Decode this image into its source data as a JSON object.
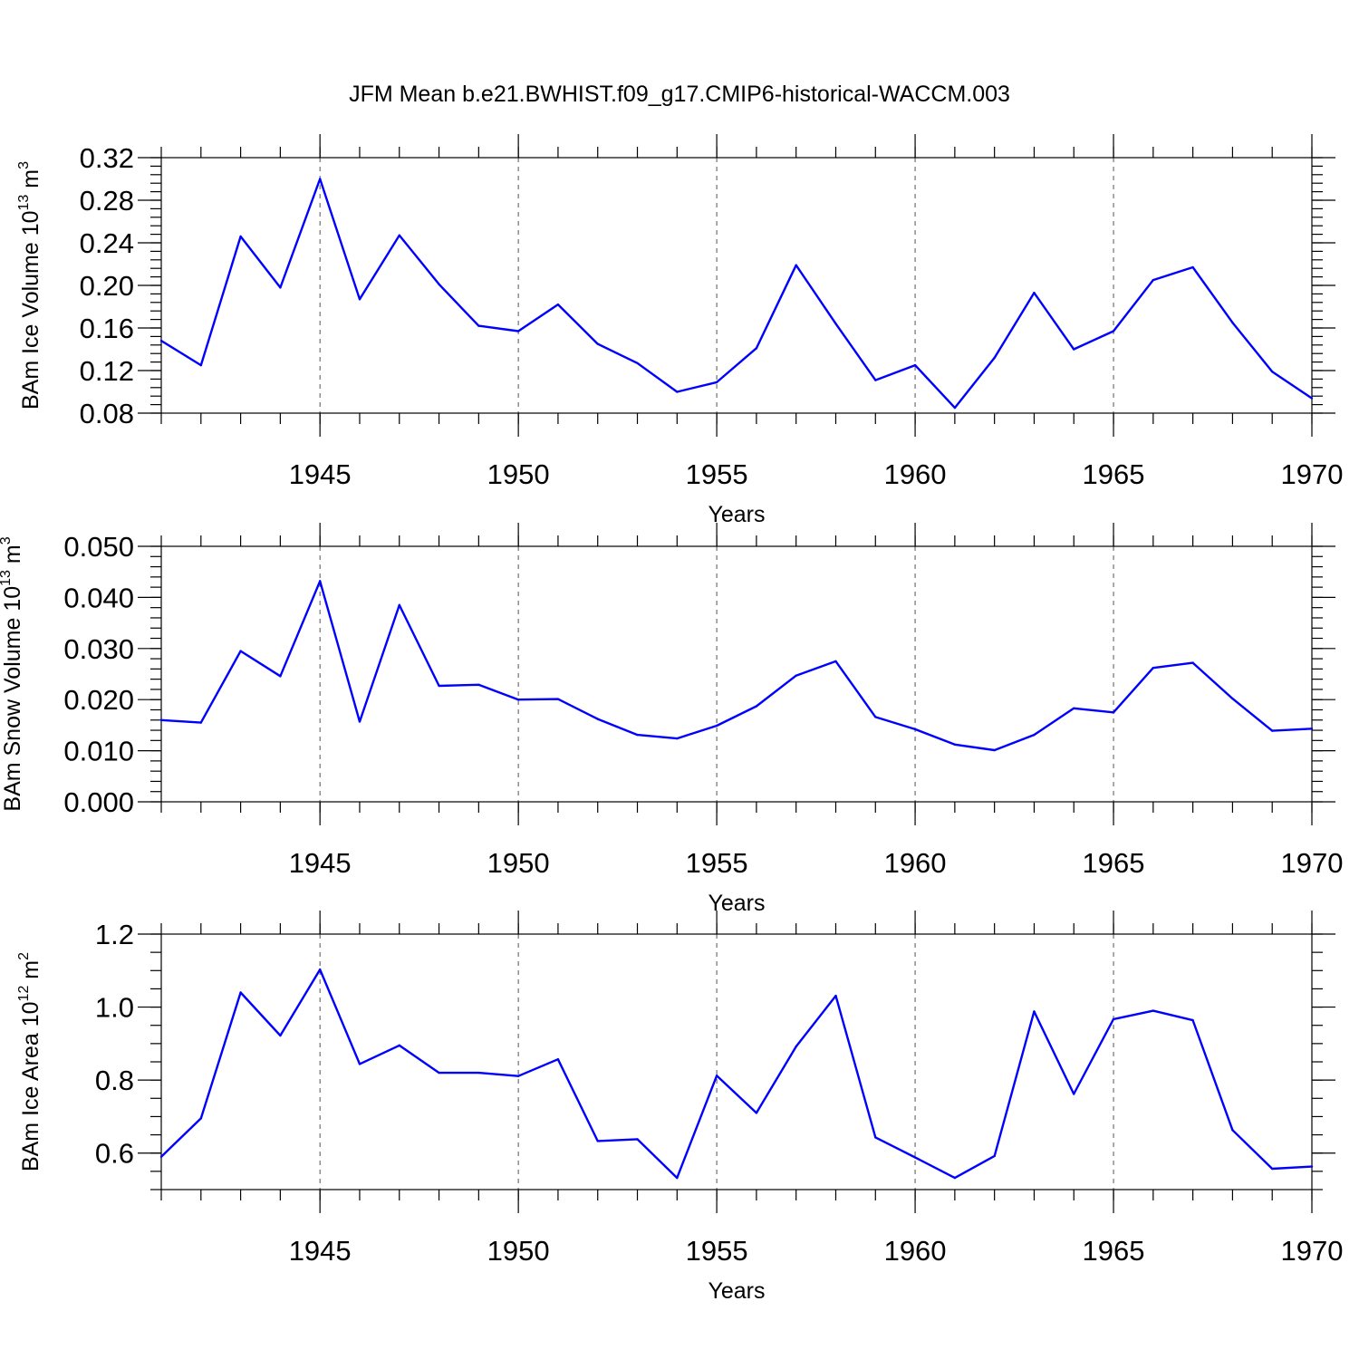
{
  "title": "JFM Mean b.e21.BWHIST.f09_g17.CMIP6-historical-WACCM.003",
  "colors": {
    "line": "#0000ff",
    "grid": "#555555"
  },
  "chart_data": [
    {
      "type": "line",
      "ylabel_main": "BAm Ice Volume 10",
      "ylabel_sup": "13",
      "ylabel_tail": " m",
      "ylabel_sup2": "3",
      "xlabel": "Years",
      "xlim": [
        1941,
        1970
      ],
      "ylim": [
        0.08,
        0.32
      ],
      "yticks": [
        0.08,
        0.12,
        0.16,
        0.2,
        0.24,
        0.28,
        0.32
      ],
      "ytick_labels": [
        "0.08",
        "0.12",
        "0.16",
        "0.20",
        "0.24",
        "0.28",
        "0.32"
      ],
      "yminor_step": 0.008,
      "xticks": [
        1945,
        1950,
        1955,
        1960,
        1965,
        1970
      ],
      "xtick_labels": [
        "1945",
        "1950",
        "1955",
        "1960",
        "1965",
        "1970"
      ],
      "grid": "vertical dashed at major x ticks",
      "x": [
        1941,
        1942,
        1943,
        1944,
        1945,
        1946,
        1947,
        1948,
        1949,
        1950,
        1951,
        1952,
        1953,
        1954,
        1955,
        1956,
        1957,
        1958,
        1959,
        1960,
        1961,
        1962,
        1963,
        1964,
        1965,
        1966,
        1967,
        1968,
        1969,
        1970
      ],
      "values": [
        0.148,
        0.125,
        0.246,
        0.198,
        0.3,
        0.187,
        0.247,
        0.201,
        0.162,
        0.157,
        0.182,
        0.145,
        0.127,
        0.1,
        0.109,
        0.141,
        0.219,
        0.164,
        0.111,
        0.125,
        0.085,
        0.132,
        0.193,
        0.14,
        0.157,
        0.205,
        0.217,
        0.165,
        0.119,
        0.094
      ]
    },
    {
      "type": "line",
      "ylabel_main": "BAm Snow Volume 10",
      "ylabel_sup": "13",
      "ylabel_tail": " m",
      "ylabel_sup2": "3",
      "xlabel": "Years",
      "xlim": [
        1941,
        1970
      ],
      "ylim": [
        0.0,
        0.05
      ],
      "yticks": [
        0.0,
        0.01,
        0.02,
        0.03,
        0.04,
        0.05
      ],
      "ytick_labels": [
        "0.000",
        "0.010",
        "0.020",
        "0.030",
        "0.040",
        "0.050"
      ],
      "yminor_step": 0.002,
      "xticks": [
        1945,
        1950,
        1955,
        1960,
        1965,
        1970
      ],
      "xtick_labels": [
        "1945",
        "1950",
        "1955",
        "1960",
        "1965",
        "1970"
      ],
      "grid": "vertical dashed at major x ticks",
      "x": [
        1941,
        1942,
        1943,
        1944,
        1945,
        1946,
        1947,
        1948,
        1949,
        1950,
        1951,
        1952,
        1953,
        1954,
        1955,
        1956,
        1957,
        1958,
        1959,
        1960,
        1961,
        1962,
        1963,
        1964,
        1965,
        1966,
        1967,
        1968,
        1969,
        1970
      ],
      "values": [
        0.016,
        0.0155,
        0.0295,
        0.0246,
        0.0432,
        0.0157,
        0.0385,
        0.0227,
        0.0229,
        0.02,
        0.0201,
        0.0162,
        0.0131,
        0.0124,
        0.0149,
        0.0187,
        0.0247,
        0.0275,
        0.0166,
        0.0142,
        0.0112,
        0.0101,
        0.0131,
        0.0183,
        0.0175,
        0.0262,
        0.0272,
        0.0202,
        0.0139,
        0.0143
      ]
    },
    {
      "type": "line",
      "ylabel_main": "BAm Ice Area 10",
      "ylabel_sup": "12",
      "ylabel_tail": " m",
      "ylabel_sup2": "2",
      "xlabel": "Years",
      "xlim": [
        1941,
        1970
      ],
      "ylim": [
        0.5,
        1.2
      ],
      "yticks": [
        0.6,
        0.8,
        1.0,
        1.2
      ],
      "ytick_labels": [
        "0.6",
        "0.8",
        "1.0",
        "1.2"
      ],
      "yminor_step": 0.05,
      "xticks": [
        1945,
        1950,
        1955,
        1960,
        1965,
        1970
      ],
      "xtick_labels": [
        "1945",
        "1950",
        "1955",
        "1960",
        "1965",
        "1970"
      ],
      "grid": "vertical dashed at major x ticks",
      "x": [
        1941,
        1942,
        1943,
        1944,
        1945,
        1946,
        1947,
        1948,
        1949,
        1950,
        1951,
        1952,
        1953,
        1954,
        1955,
        1956,
        1957,
        1958,
        1959,
        1960,
        1961,
        1962,
        1963,
        1964,
        1965,
        1966,
        1967,
        1968,
        1969,
        1970
      ],
      "values": [
        0.59,
        0.695,
        1.04,
        0.922,
        1.103,
        0.844,
        0.895,
        0.82,
        0.82,
        0.811,
        0.857,
        0.633,
        0.638,
        0.532,
        0.812,
        0.71,
        0.892,
        1.031,
        0.643,
        0.588,
        0.532,
        0.592,
        0.988,
        0.762,
        0.967,
        0.99,
        0.964,
        0.663,
        0.557,
        0.563
      ]
    }
  ]
}
